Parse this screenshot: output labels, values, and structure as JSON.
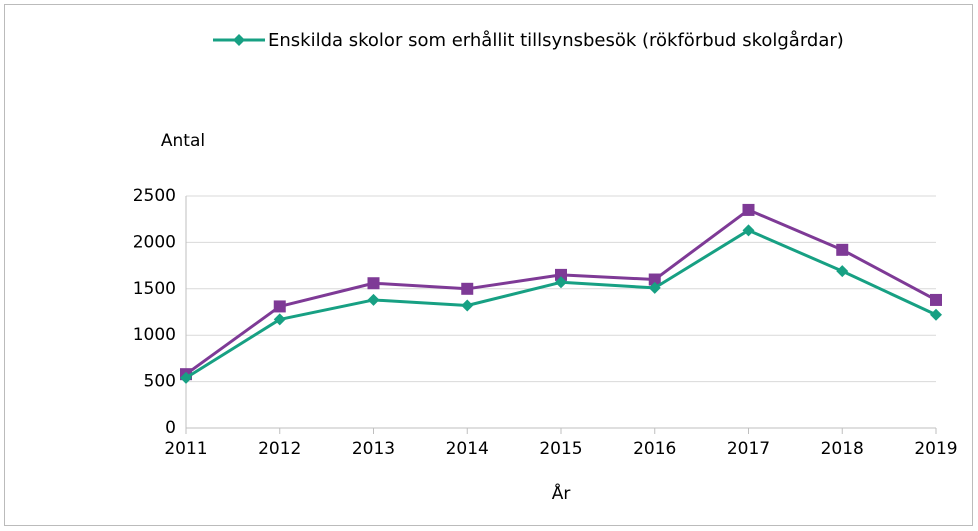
{
  "chart_data": {
    "type": "line",
    "categories": [
      "2011",
      "2012",
      "2013",
      "2014",
      "2015",
      "2016",
      "2017",
      "2018",
      "2019"
    ],
    "series": [
      {
        "name": "Enskilda skolor som erhållit tillsynsbesök (rökförbud skolgårdar)",
        "color": "#17a083",
        "marker": "diamond",
        "values": [
          540,
          1170,
          1380,
          1320,
          1570,
          1510,
          2130,
          1690,
          1220
        ]
      },
      {
        "color": "#7e3a96",
        "marker": "square",
        "values": [
          580,
          1310,
          1560,
          1500,
          1650,
          1600,
          2350,
          1920,
          1380
        ]
      }
    ],
    "ylabel": "Antal",
    "xlabel": "År",
    "ylim": [
      0,
      2500
    ],
    "yticks": [
      0,
      500,
      1000,
      1500,
      2000,
      2500
    ],
    "grid": true,
    "legend": "top"
  }
}
